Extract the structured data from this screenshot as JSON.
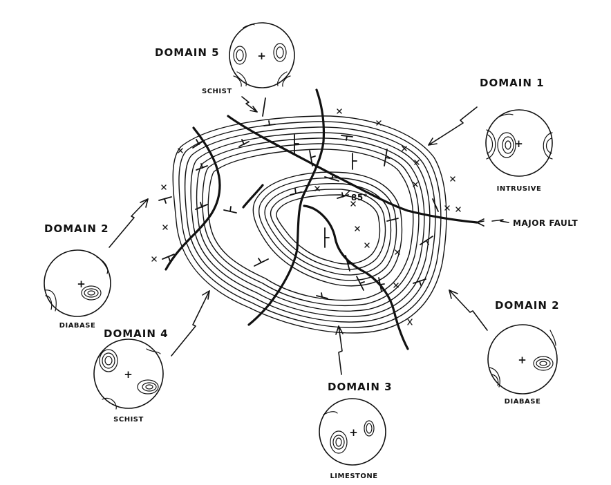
{
  "domains": [
    {
      "key": "domain5",
      "label": "DOMAIN 5",
      "rock": "SCHIST"
    },
    {
      "key": "domain1",
      "label": "DOMAIN 1",
      "rock": "INTRUSIVE"
    },
    {
      "key": "domain2_left",
      "label": "DOMAIN 2",
      "rock": "DIABASE"
    },
    {
      "key": "domain4",
      "label": "DOMAIN 4",
      "rock": "SCHIST"
    },
    {
      "key": "domain3",
      "label": "DOMAIN 3",
      "rock": "LIMESTONE"
    },
    {
      "key": "domain2_right",
      "label": "DOMAIN 2",
      "rock": "DIABASE"
    }
  ],
  "major_fault_label": "MAJOR FAULT",
  "dip_label": "85°",
  "center_mark": "+"
}
